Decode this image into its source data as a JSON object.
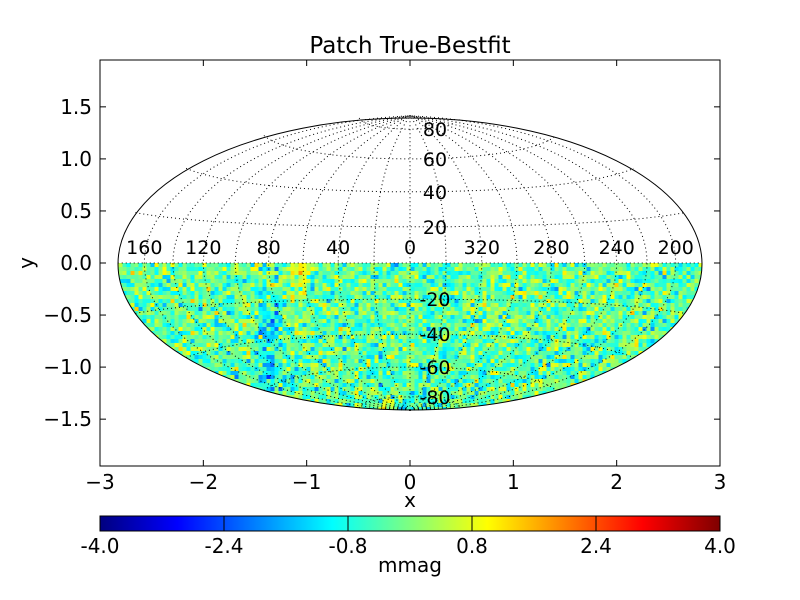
{
  "chart_data": {
    "type": "heatmap",
    "title": "Patch True-Bestfit",
    "xlabel": "x",
    "ylabel": "y",
    "xlim": [
      -3,
      3
    ],
    "ylim": [
      -1.95,
      1.95
    ],
    "xticks": [
      {
        "value": -3,
        "label": "−3"
      },
      {
        "value": -2,
        "label": "−2"
      },
      {
        "value": -1,
        "label": "−1"
      },
      {
        "value": 0,
        "label": "0"
      },
      {
        "value": 1,
        "label": "1"
      },
      {
        "value": 2,
        "label": "2"
      },
      {
        "value": 3,
        "label": "3"
      }
    ],
    "yticks": [
      {
        "value": 1.5,
        "label": "1.5"
      },
      {
        "value": 1.0,
        "label": "1.0"
      },
      {
        "value": 0.5,
        "label": "0.5"
      },
      {
        "value": 0.0,
        "label": "0.0"
      },
      {
        "value": -0.5,
        "label": "−0.5"
      },
      {
        "value": -1.0,
        "label": "−1.0"
      },
      {
        "value": -1.5,
        "label": "−1.5"
      }
    ],
    "projection": "hammer-aitoff",
    "grid": true,
    "meridian_labels": [
      {
        "lon": 200,
        "label": "200"
      },
      {
        "lon": 240,
        "label": "240"
      },
      {
        "lon": 280,
        "label": "280"
      },
      {
        "lon": 320,
        "label": "320"
      },
      {
        "lon": 0,
        "label": "0"
      },
      {
        "lon": 40,
        "label": "40"
      },
      {
        "lon": 80,
        "label": "80"
      },
      {
        "lon": 120,
        "label": "120"
      },
      {
        "lon": 160,
        "label": "160"
      }
    ],
    "parallel_labels": [
      {
        "lat": 80,
        "label": "80"
      },
      {
        "lat": 60,
        "label": "60"
      },
      {
        "lat": 40,
        "label": "40"
      },
      {
        "lat": 20,
        "label": "20"
      },
      {
        "lat": -20,
        "label": "-20"
      },
      {
        "lat": -40,
        "label": "-40"
      },
      {
        "lat": -60,
        "label": "-60"
      },
      {
        "lat": -80,
        "label": "-80"
      }
    ],
    "data_coverage": "southern hemisphere only (lat < 0)",
    "colorbar": {
      "label": "mmag",
      "range": [
        -4.0,
        4.0
      ],
      "ticks": [
        {
          "value": -4.0,
          "label": "-4.0"
        },
        {
          "value": -2.4,
          "label": "-2.4"
        },
        {
          "value": -0.8,
          "label": "-0.8"
        },
        {
          "value": 0.8,
          "label": "0.8"
        },
        {
          "value": 2.4,
          "label": "2.4"
        },
        {
          "value": 4.0,
          "label": "4.0"
        }
      ],
      "colormap": "jet",
      "colors": [
        "#00007f",
        "#0000ff",
        "#007fff",
        "#00ffff",
        "#7fff7f",
        "#ffff00",
        "#ff7f00",
        "#ff0000",
        "#7f0000"
      ]
    }
  }
}
